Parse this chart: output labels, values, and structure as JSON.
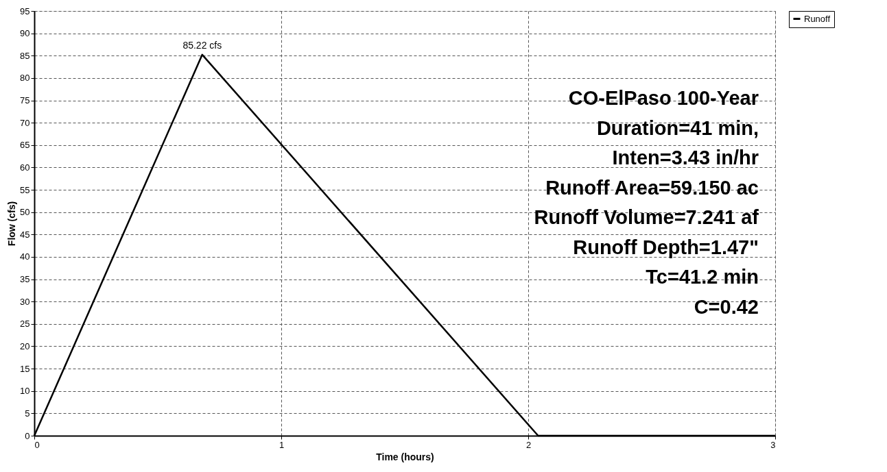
{
  "chart_data": {
    "type": "line",
    "xlabel": "Time (hours)",
    "ylabel": "Flow (cfs)",
    "x": [
      0,
      0.68,
      2.04,
      3
    ],
    "series": [
      {
        "name": "Runoff",
        "color": "#000000",
        "values": [
          0,
          85.22,
          0,
          0
        ]
      }
    ],
    "xlim": [
      0,
      3
    ],
    "xticks": [
      0,
      1,
      2,
      3
    ],
    "ylim": [
      0,
      95
    ],
    "yticks": [
      0,
      5,
      10,
      15,
      20,
      25,
      30,
      35,
      40,
      45,
      50,
      55,
      60,
      65,
      70,
      75,
      80,
      85,
      90,
      95
    ],
    "grid": true,
    "legend": "top right",
    "marker": "none",
    "line_style": "solid",
    "annotations": [
      {
        "text": "85.22 cfs",
        "x": 0.68,
        "y": 85.22
      },
      "CO-ElPaso 100-Year",
      "Duration=41 min,",
      "Inten=3.43 in/hr",
      "Runoff Area=59.150 ac",
      "Runoff Volume=7.241 af",
      "Runoff Depth=1.47\"",
      "Tc=41.2 min",
      "C=0.42"
    ]
  }
}
